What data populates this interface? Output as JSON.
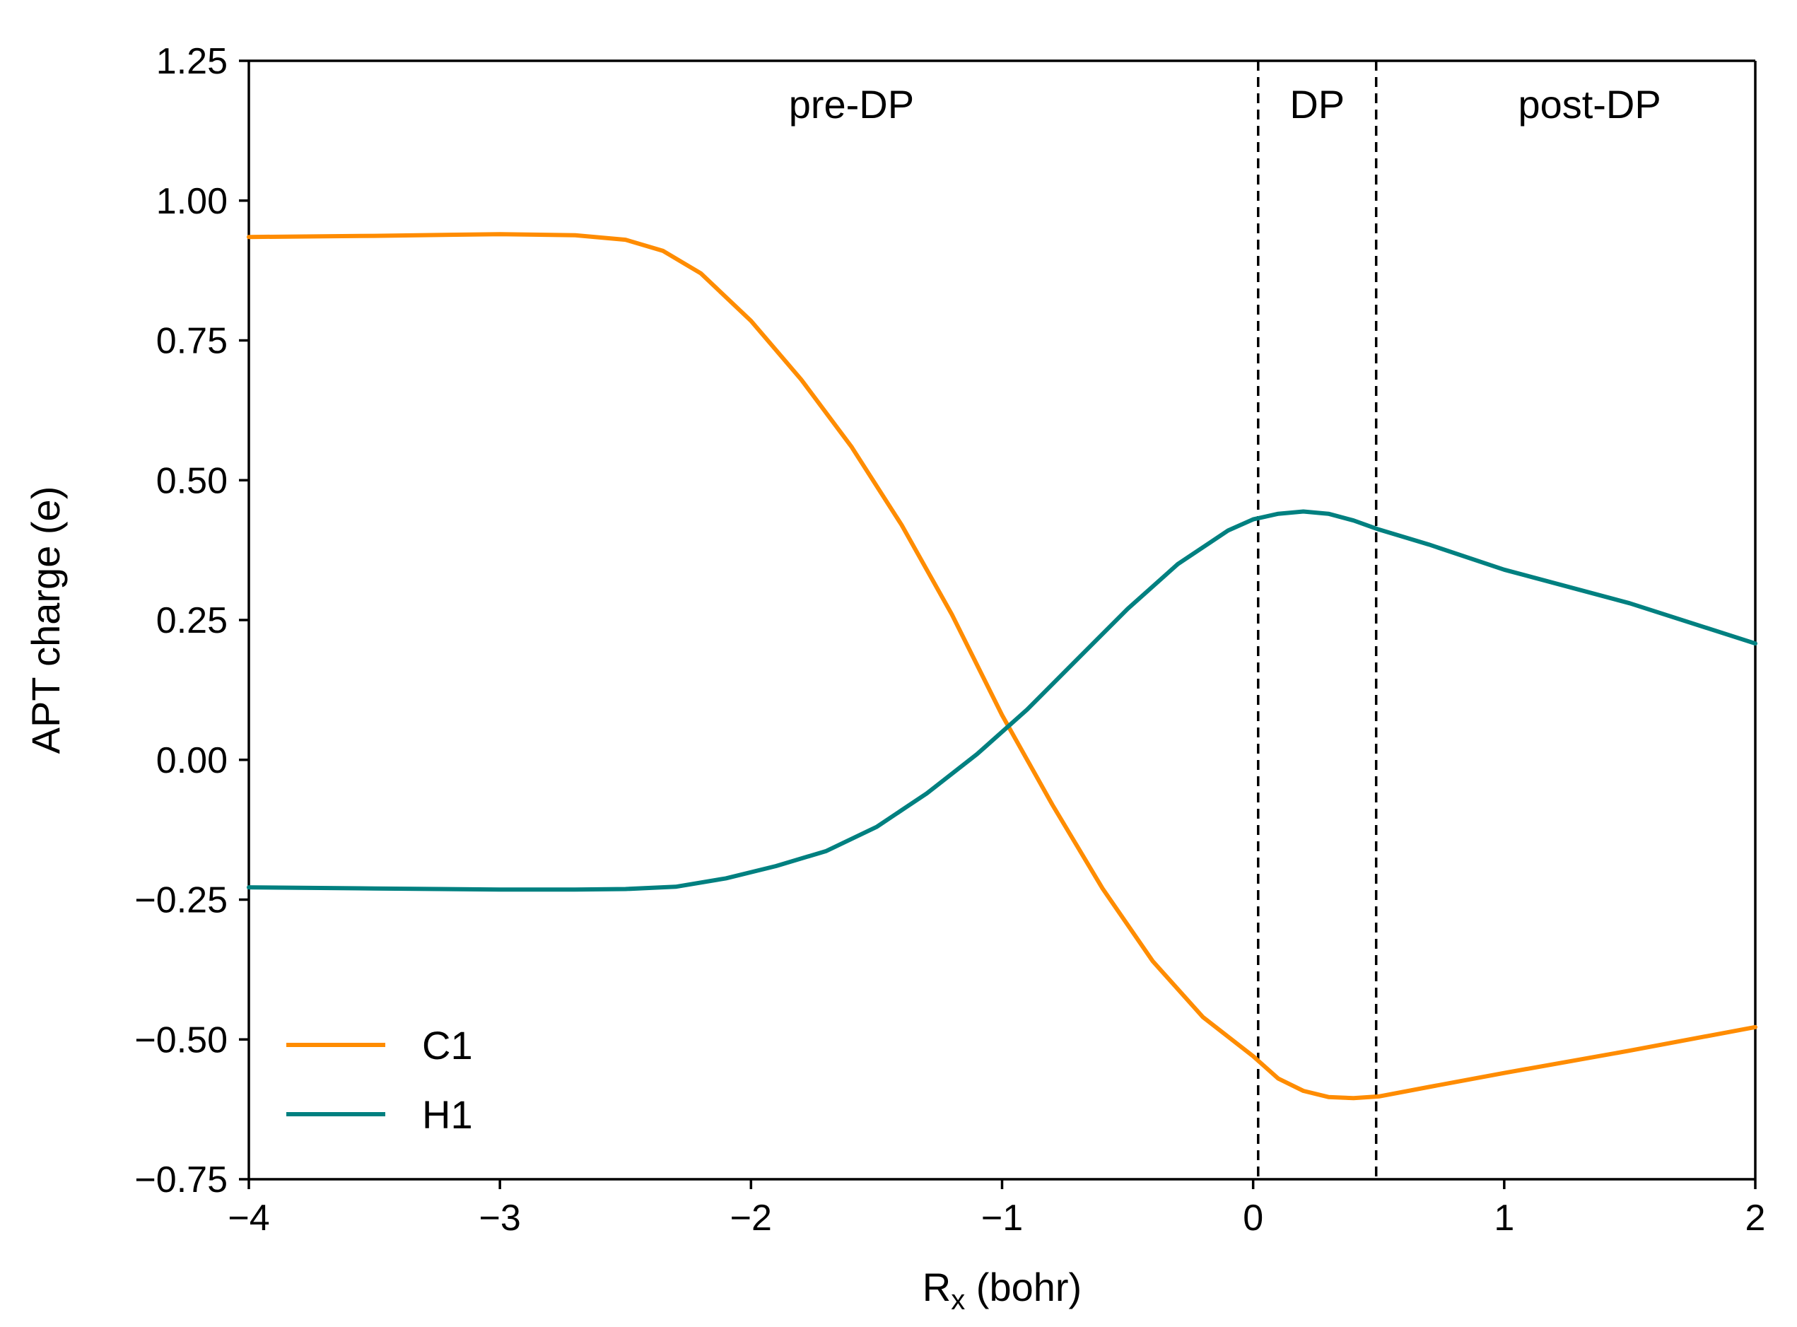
{
  "chart_data": {
    "type": "line",
    "title": "",
    "xlabel_main": "R",
    "xlabel_sub": "x",
    "xlabel_tail": " (bohr)",
    "ylabel": "APT charge (e)",
    "xlim": [
      -4,
      2
    ],
    "ylim": [
      -0.75,
      1.25
    ],
    "xticks": [
      -4,
      -3,
      -2,
      -1,
      0,
      1,
      2
    ],
    "xtick_labels": [
      "−4",
      "−3",
      "−2",
      "−1",
      "0",
      "1",
      "2"
    ],
    "yticks": [
      1.25,
      1.0,
      0.75,
      0.5,
      0.25,
      0.0,
      -0.25,
      -0.5,
      -0.75
    ],
    "ytick_labels": [
      "1.25",
      "1.00",
      "0.75",
      "0.50",
      "0.25",
      "0.00",
      "−0.25",
      "−0.50",
      "−0.75"
    ],
    "vlines": [
      0.02,
      0.49
    ],
    "regions": [
      {
        "label": "pre-DP",
        "x": -1.6
      },
      {
        "label": "DP",
        "x": 0.255
      },
      {
        "label": "post-DP",
        "x": 1.34
      }
    ],
    "legend_position": "lower-left",
    "series": [
      {
        "name": "C1",
        "color": "#ff8c00",
        "x": [
          -4.0,
          -3.5,
          -3.0,
          -2.7,
          -2.5,
          -2.35,
          -2.2,
          -2.0,
          -1.8,
          -1.6,
          -1.4,
          -1.2,
          -1.0,
          -0.8,
          -0.6,
          -0.4,
          -0.2,
          0.0,
          0.1,
          0.2,
          0.3,
          0.4,
          0.5,
          0.7,
          1.0,
          1.5,
          2.0
        ],
        "values": [
          0.935,
          0.937,
          0.94,
          0.938,
          0.93,
          0.91,
          0.87,
          0.785,
          0.68,
          0.56,
          0.42,
          0.26,
          0.08,
          -0.08,
          -0.23,
          -0.36,
          -0.46,
          -0.53,
          -0.57,
          -0.592,
          -0.603,
          -0.605,
          -0.602,
          -0.585,
          -0.56,
          -0.52,
          -0.478
        ]
      },
      {
        "name": "H1",
        "color": "#008080",
        "x": [
          -4.0,
          -3.5,
          -3.0,
          -2.7,
          -2.5,
          -2.3,
          -2.1,
          -1.9,
          -1.7,
          -1.5,
          -1.3,
          -1.1,
          -0.9,
          -0.7,
          -0.5,
          -0.3,
          -0.1,
          0.0,
          0.1,
          0.2,
          0.3,
          0.4,
          0.5,
          0.7,
          1.0,
          1.5,
          2.0
        ],
        "values": [
          -0.228,
          -0.23,
          -0.232,
          -0.232,
          -0.231,
          -0.227,
          -0.212,
          -0.19,
          -0.163,
          -0.12,
          -0.06,
          0.01,
          0.09,
          0.18,
          0.27,
          0.35,
          0.41,
          0.43,
          0.44,
          0.444,
          0.44,
          0.428,
          0.412,
          0.385,
          0.34,
          0.28,
          0.208
        ]
      }
    ]
  }
}
